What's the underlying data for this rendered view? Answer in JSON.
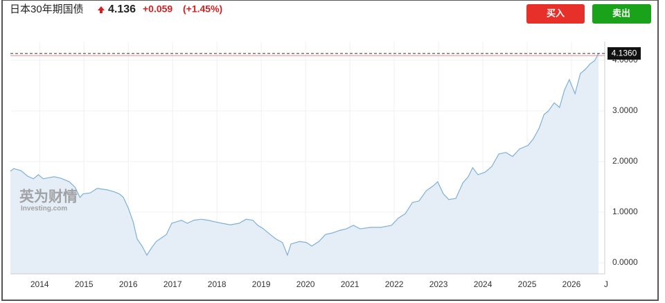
{
  "header": {
    "title": "日本30年期国债",
    "price": "4.136",
    "change": "+0.059",
    "change_pct": "(+1.45%)"
  },
  "buttons": {
    "buy": "买入",
    "sell": "卖出"
  },
  "watermark": {
    "cn": "英为财情",
    "en": "Investing.com"
  },
  "chart_data": {
    "type": "area",
    "color": "#7fb0d8",
    "fill": "#e5edf6",
    "x": [
      2013.34,
      2013.42,
      2013.58,
      2013.73,
      2013.86,
      2013.97,
      2014.08,
      2014.2,
      2014.33,
      2014.48,
      2014.67,
      2014.8,
      2014.91,
      2014.98,
      2015.14,
      2015.3,
      2015.53,
      2015.69,
      2015.8,
      2015.89,
      2016.0,
      2016.11,
      2016.2,
      2016.31,
      2016.42,
      2016.52,
      2016.63,
      2016.78,
      2016.86,
      2016.98,
      2017.09,
      2017.2,
      2017.33,
      2017.48,
      2017.64,
      2017.8,
      2017.95,
      2018.11,
      2018.3,
      2018.5,
      2018.66,
      2018.81,
      2018.92,
      2019.05,
      2019.2,
      2019.33,
      2019.48,
      2019.59,
      2019.67,
      2019.86,
      2020.02,
      2020.14,
      2020.3,
      2020.45,
      2020.61,
      2020.77,
      2020.92,
      2021.08,
      2021.23,
      2021.47,
      2021.7,
      2021.94,
      2022.09,
      2022.25,
      2022.41,
      2022.56,
      2022.72,
      2022.88,
      2022.98,
      2023.11,
      2023.23,
      2023.39,
      2023.55,
      2023.67,
      2023.77,
      2023.89,
      2024.05,
      2024.2,
      2024.36,
      2024.52,
      2024.67,
      2024.83,
      2025.02,
      2025.14,
      2025.27,
      2025.38,
      2025.48,
      2025.61,
      2025.73,
      2025.84,
      2025.95,
      2026.08,
      2026.2,
      2026.31,
      2026.42,
      2026.52,
      2026.61
    ],
    "values": [
      1.81,
      1.86,
      1.82,
      1.71,
      1.66,
      1.74,
      1.66,
      1.68,
      1.7,
      1.67,
      1.6,
      1.49,
      1.29,
      1.36,
      1.38,
      1.47,
      1.44,
      1.4,
      1.36,
      1.29,
      1.08,
      0.81,
      0.47,
      0.33,
      0.15,
      0.29,
      0.42,
      0.51,
      0.56,
      0.78,
      0.81,
      0.84,
      0.78,
      0.84,
      0.86,
      0.84,
      0.81,
      0.78,
      0.75,
      0.78,
      0.86,
      0.84,
      0.74,
      0.67,
      0.56,
      0.47,
      0.4,
      0.15,
      0.37,
      0.42,
      0.4,
      0.33,
      0.42,
      0.56,
      0.59,
      0.64,
      0.67,
      0.74,
      0.67,
      0.7,
      0.7,
      0.74,
      0.88,
      0.97,
      1.19,
      1.22,
      1.42,
      1.52,
      1.6,
      1.36,
      1.25,
      1.27,
      1.58,
      1.7,
      1.88,
      1.74,
      1.79,
      1.9,
      2.15,
      2.18,
      2.1,
      2.25,
      2.32,
      2.45,
      2.66,
      2.93,
      3.0,
      3.16,
      3.07,
      3.41,
      3.62,
      3.34,
      3.74,
      3.82,
      3.93,
      3.99,
      4.136
    ],
    "xlim": [
      2013.34,
      2026.75
    ],
    "xticks": [
      2014,
      2015,
      2016,
      2017,
      2018,
      2019,
      2020,
      2021,
      2022,
      2023,
      2024,
      2025,
      2026,
      {
        "value": 2026.78,
        "label": "J"
      }
    ],
    "ylim": [
      -0.22,
      4.37
    ],
    "yticks": [
      {
        "value": 0,
        "label": "0.0000"
      },
      {
        "value": 1,
        "label": "1.0000"
      },
      {
        "value": 2,
        "label": "2.0000"
      },
      {
        "value": 3,
        "label": "3.0000"
      },
      {
        "value": 4,
        "label": "4.0000"
      }
    ],
    "last_label": {
      "value": 4.136,
      "label": "4.1360"
    },
    "grid": true
  }
}
